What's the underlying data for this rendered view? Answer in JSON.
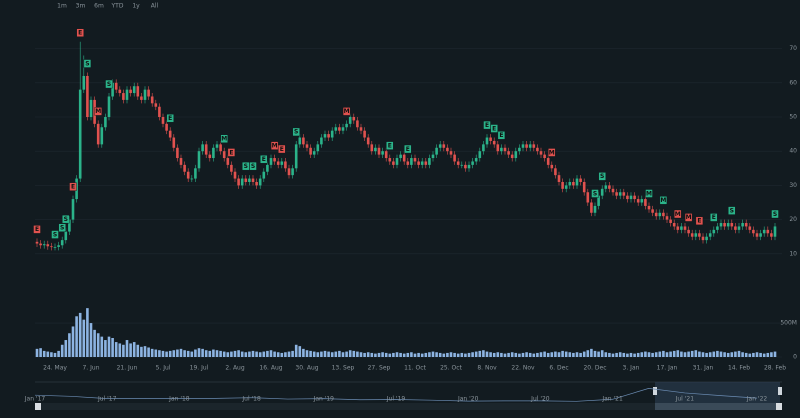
{
  "chart_data": {
    "type": "candlestick",
    "range_selector": [
      "1m",
      "3m",
      "6m",
      "YTD",
      "1y",
      "All"
    ],
    "categories": [
      null,
      null,
      null,
      null,
      null,
      "24. May",
      null,
      null,
      null,
      null,
      null,
      null,
      null,
      null,
      null,
      "7. Jun",
      null,
      null,
      null,
      null,
      null,
      null,
      null,
      null,
      null,
      "21. Jun",
      null,
      null,
      null,
      null,
      null,
      null,
      null,
      null,
      null,
      "5. Jul",
      null,
      null,
      null,
      null,
      null,
      null,
      null,
      null,
      null,
      "19. Jul",
      null,
      null,
      null,
      null,
      null,
      null,
      null,
      null,
      null,
      "2. Aug",
      null,
      null,
      null,
      null,
      null,
      null,
      null,
      null,
      null,
      "16. Aug",
      null,
      null,
      null,
      null,
      null,
      null,
      null,
      null,
      null,
      "30. Aug",
      null,
      null,
      null,
      null,
      null,
      null,
      null,
      null,
      null,
      "13. Sep",
      null,
      null,
      null,
      null,
      null,
      null,
      null,
      null,
      null,
      "27. Sep",
      null,
      null,
      null,
      null,
      null,
      null,
      null,
      null,
      null,
      "11. Oct",
      null,
      null,
      null,
      null,
      null,
      null,
      null,
      null,
      null,
      "25. Oct",
      null,
      null,
      null,
      null,
      null,
      null,
      null,
      null,
      null,
      "8. Nov",
      null,
      null,
      null,
      null,
      null,
      null,
      null,
      null,
      null,
      "22. Nov",
      null,
      null,
      null,
      null,
      null,
      null,
      null,
      null,
      null,
      "6. Dec",
      null,
      null,
      null,
      null,
      null,
      null,
      null,
      null,
      null,
      "20. Dec",
      null,
      null,
      null,
      null,
      null,
      null,
      null,
      null,
      null,
      "3. Jan",
      null,
      null,
      null,
      null,
      null,
      null,
      null,
      null,
      null,
      "17. Jan",
      null,
      null,
      null,
      null,
      null,
      null,
      null,
      null,
      null,
      "31. Jan",
      null,
      null,
      null,
      null,
      null,
      null,
      null,
      null,
      null,
      "14. Feb",
      null,
      null,
      null,
      null,
      null,
      null,
      null,
      null,
      null,
      "28. Feb"
    ],
    "open": [
      13.5,
      13,
      12.5,
      12.8,
      12.2,
      12,
      12,
      12.5,
      14,
      16.5,
      20,
      26,
      32,
      58,
      62,
      50,
      55,
      48,
      42,
      47,
      50,
      56,
      60,
      58,
      57,
      55,
      58,
      57,
      59,
      56,
      55,
      58,
      56,
      54,
      53,
      50,
      48,
      46,
      44,
      41,
      38,
      36,
      34,
      32,
      32,
      35,
      40,
      42,
      39,
      38,
      41,
      42,
      40,
      38,
      36,
      34,
      32,
      30,
      32,
      31,
      32,
      31,
      30,
      32,
      34,
      36,
      38,
      37,
      36,
      37,
      35,
      33,
      35,
      42,
      44,
      42,
      41,
      39,
      40,
      42,
      44,
      45,
      44,
      46,
      47,
      46,
      47,
      48,
      50,
      49,
      47,
      46,
      44,
      42,
      40,
      41,
      39,
      40,
      38,
      37,
      36,
      38,
      39,
      37,
      36,
      38,
      37,
      36,
      37,
      36,
      38,
      39,
      41,
      42,
      41,
      40,
      39,
      37,
      36,
      36,
      35,
      36,
      37,
      38,
      40,
      42,
      44,
      43,
      42,
      40,
      41,
      40,
      39,
      38,
      40,
      41,
      42,
      41,
      42,
      41,
      40,
      39,
      38,
      36,
      35,
      33,
      31,
      29,
      30,
      31,
      30,
      32,
      31,
      28,
      25,
      22,
      24,
      27,
      29,
      30,
      29,
      28,
      27,
      28,
      27,
      26,
      27,
      26,
      25,
      26,
      24,
      23,
      22,
      21,
      22,
      21,
      20,
      19,
      18,
      17,
      18,
      17,
      16,
      15,
      16,
      15,
      14,
      15,
      16,
      17,
      18,
      19,
      18,
      19,
      18,
      17,
      18,
      19,
      18,
      17,
      16,
      15,
      16,
      17,
      16,
      15
    ],
    "high": [
      14.5,
      14,
      13.8,
      13.8,
      13.2,
      13,
      13.5,
      15,
      17.5,
      21,
      27,
      33,
      72,
      68,
      63,
      56,
      56,
      49,
      48,
      51,
      57,
      61,
      61,
      59,
      58,
      59,
      59,
      60,
      60,
      57,
      59,
      59,
      57,
      55,
      54,
      51,
      49,
      47,
      45,
      42,
      39,
      37,
      35,
      33,
      36,
      41,
      43,
      43,
      40,
      42,
      43,
      43,
      41,
      39,
      37,
      35,
      33,
      33,
      33,
      33,
      33,
      32,
      33,
      35,
      37,
      39,
      39,
      38,
      38,
      38,
      36,
      36,
      43,
      45,
      45,
      43,
      42,
      41,
      43,
      45,
      46,
      46,
      47,
      48,
      48,
      48,
      49,
      51,
      51,
      50,
      48,
      47,
      45,
      43,
      42,
      42,
      41,
      41,
      39,
      38,
      39,
      40,
      40,
      38,
      39,
      39,
      38,
      38,
      38,
      39,
      40,
      42,
      43,
      43,
      42,
      41,
      40,
      38,
      37,
      37,
      37,
      38,
      39,
      41,
      43,
      45,
      45,
      44,
      43,
      42,
      42,
      41,
      40,
      41,
      42,
      43,
      43,
      43,
      43,
      42,
      41,
      40,
      39,
      37,
      36,
      34,
      32,
      31,
      32,
      32,
      33,
      33,
      32,
      29,
      26,
      25,
      28,
      30,
      31,
      31,
      30,
      29,
      29,
      29,
      28,
      28,
      28,
      27,
      27,
      27,
      25,
      24,
      23,
      23,
      23,
      22,
      21,
      20,
      19,
      19,
      19,
      18,
      17,
      17,
      17,
      16,
      16,
      17,
      18,
      19,
      20,
      20,
      20,
      20,
      19,
      19,
      20,
      20,
      19,
      18,
      17,
      17,
      18,
      18,
      17,
      19
    ],
    "low": [
      12,
      11.5,
      11.5,
      11.2,
      11,
      11,
      11,
      11.5,
      13,
      15.5,
      19,
      25,
      31,
      57,
      49,
      49,
      47,
      41,
      41,
      46,
      49,
      55,
      57,
      56,
      54,
      54,
      56,
      56,
      55,
      54,
      54,
      55,
      53,
      52,
      49,
      47,
      45,
      43,
      40,
      37,
      35,
      33,
      31,
      31,
      31,
      34,
      39,
      38,
      37,
      37,
      40,
      39,
      37,
      35,
      33,
      31,
      29,
      29,
      30,
      30,
      30,
      29,
      29,
      31,
      33,
      35,
      36,
      35,
      35,
      34,
      32,
      32,
      34,
      41,
      41,
      40,
      38,
      38,
      39,
      41,
      43,
      43,
      43,
      45,
      45,
      45,
      46,
      47,
      48,
      46,
      45,
      43,
      41,
      39,
      39,
      38,
      38,
      37,
      36,
      35,
      35,
      37,
      36,
      35,
      35,
      36,
      35,
      35,
      35,
      35,
      37,
      38,
      40,
      40,
      39,
      38,
      36,
      35,
      35,
      34,
      34,
      35,
      36,
      37,
      39,
      41,
      42,
      41,
      39,
      39,
      39,
      38,
      37,
      37,
      39,
      40,
      40,
      40,
      40,
      39,
      38,
      37,
      35,
      34,
      32,
      30,
      28,
      28,
      29,
      29,
      29,
      30,
      27,
      24,
      21,
      21,
      23,
      26,
      28,
      28,
      27,
      26,
      26,
      26,
      25,
      25,
      25,
      24,
      24,
      23,
      22,
      21,
      20,
      20,
      20,
      19,
      18,
      17,
      16,
      16,
      16,
      15,
      14,
      14,
      14,
      13,
      13,
      14,
      15,
      16,
      17,
      17,
      17,
      17,
      16,
      16,
      17,
      17,
      16,
      15,
      14,
      14,
      15,
      15,
      14,
      14
    ],
    "close": [
      13,
      12.5,
      12.8,
      12.2,
      12,
      12,
      12.5,
      14,
      16.5,
      20,
      26,
      32,
      58,
      62,
      50,
      55,
      48,
      42,
      47,
      50,
      56,
      60,
      58,
      57,
      55,
      58,
      57,
      59,
      56,
      55,
      58,
      56,
      54,
      53,
      50,
      48,
      46,
      44,
      41,
      38,
      36,
      34,
      32,
      32,
      35,
      40,
      42,
      39,
      38,
      41,
      42,
      40,
      38,
      36,
      34,
      32,
      30,
      32,
      31,
      32,
      31,
      30,
      32,
      34,
      36,
      38,
      37,
      36,
      37,
      35,
      33,
      35,
      42,
      44,
      42,
      41,
      39,
      40,
      42,
      44,
      45,
      44,
      46,
      47,
      46,
      47,
      48,
      50,
      49,
      47,
      46,
      44,
      42,
      40,
      41,
      39,
      40,
      38,
      37,
      36,
      38,
      39,
      37,
      36,
      38,
      37,
      36,
      37,
      36,
      38,
      39,
      41,
      42,
      41,
      40,
      39,
      37,
      36,
      36,
      35,
      36,
      37,
      38,
      40,
      42,
      44,
      43,
      42,
      40,
      41,
      40,
      39,
      38,
      40,
      41,
      42,
      41,
      42,
      41,
      40,
      39,
      38,
      36,
      35,
      33,
      31,
      29,
      30,
      31,
      30,
      32,
      31,
      28,
      25,
      22,
      24,
      27,
      29,
      30,
      29,
      28,
      27,
      28,
      27,
      26,
      27,
      26,
      25,
      26,
      24,
      23,
      22,
      21,
      22,
      21,
      20,
      19,
      18,
      17,
      18,
      17,
      16,
      15,
      16,
      15,
      14,
      15,
      16,
      17,
      18,
      19,
      18,
      19,
      18,
      17,
      18,
      19,
      18,
      17,
      16,
      15,
      16,
      17,
      16,
      15,
      18
    ],
    "volume": [
      120,
      130,
      90,
      80,
      70,
      60,
      90,
      180,
      250,
      350,
      450,
      600,
      650,
      550,
      720,
      500,
      400,
      350,
      300,
      250,
      300,
      280,
      220,
      200,
      180,
      250,
      200,
      220,
      180,
      150,
      160,
      140,
      120,
      110,
      100,
      90,
      80,
      90,
      100,
      110,
      120,
      100,
      90,
      80,
      110,
      130,
      120,
      100,
      90,
      110,
      100,
      90,
      80,
      70,
      80,
      90,
      100,
      80,
      70,
      80,
      90,
      80,
      70,
      80,
      90,
      100,
      80,
      70,
      60,
      70,
      80,
      90,
      180,
      160,
      120,
      100,
      90,
      80,
      70,
      80,
      90,
      80,
      70,
      80,
      90,
      70,
      80,
      100,
      90,
      80,
      70,
      60,
      70,
      60,
      50,
      60,
      70,
      60,
      50,
      60,
      70,
      60,
      50,
      60,
      70,
      50,
      60,
      50,
      60,
      70,
      80,
      70,
      60,
      50,
      60,
      70,
      60,
      50,
      60,
      50,
      60,
      70,
      80,
      90,
      100,
      80,
      70,
      60,
      70,
      60,
      50,
      60,
      70,
      60,
      50,
      60,
      70,
      60,
      50,
      60,
      70,
      80,
      60,
      70,
      80,
      70,
      90,
      80,
      70,
      60,
      70,
      60,
      80,
      100,
      120,
      90,
      80,
      100,
      70,
      60,
      50,
      60,
      70,
      60,
      50,
      60,
      50,
      60,
      70,
      80,
      70,
      60,
      70,
      80,
      90,
      70,
      80,
      90,
      100,
      80,
      70,
      80,
      90,
      100,
      80,
      70,
      60,
      70,
      80,
      90,
      80,
      70,
      60,
      70,
      80,
      90,
      70,
      60,
      50,
      60,
      70,
      60,
      50,
      60,
      70,
      80
    ],
    "up_color": "#2bb38a",
    "down_color": "#e0524f",
    "volume_color": "#8db4e2",
    "ylim": [
      0,
      75
    ],
    "yticks": [
      10,
      20,
      30,
      40,
      50,
      60,
      70
    ],
    "volume_ylim": [
      0,
      840
    ],
    "volume_yticks": [
      {
        "value": 500,
        "label": "500M"
      },
      0
    ],
    "grid": true,
    "flags": [
      {
        "x": 0,
        "title": "E",
        "color": "#e0524f"
      },
      {
        "x": 5,
        "title": "S",
        "color": "#2bb38a"
      },
      {
        "x": 7,
        "title": "S",
        "color": "#2bb38a"
      },
      {
        "x": 8,
        "title": "S",
        "color": "#2bb38a"
      },
      {
        "x": 10,
        "title": "E",
        "color": "#e0524f"
      },
      {
        "x": 12,
        "title": "E",
        "color": "#e0524f"
      },
      {
        "x": 14,
        "title": "S",
        "color": "#2bb38a"
      },
      {
        "x": 17,
        "title": "M",
        "color": "#e0524f"
      },
      {
        "x": 20,
        "title": "S",
        "color": "#2bb38a"
      },
      {
        "x": 37,
        "title": "E",
        "color": "#2bb38a"
      },
      {
        "x": 52,
        "title": "M",
        "color": "#2bb38a"
      },
      {
        "x": 54,
        "title": "E",
        "color": "#e0524f"
      },
      {
        "x": 58,
        "title": "S",
        "color": "#2bb38a"
      },
      {
        "x": 60,
        "title": "S",
        "color": "#2bb38a"
      },
      {
        "x": 63,
        "title": "E",
        "color": "#2bb38a"
      },
      {
        "x": 66,
        "title": "M",
        "color": "#e0524f"
      },
      {
        "x": 68,
        "title": "E",
        "color": "#e0524f"
      },
      {
        "x": 72,
        "title": "S",
        "color": "#2bb38a"
      },
      {
        "x": 86,
        "title": "M",
        "color": "#e0524f"
      },
      {
        "x": 98,
        "title": "E",
        "color": "#2bb38a"
      },
      {
        "x": 103,
        "title": "E",
        "color": "#2bb38a"
      },
      {
        "x": 125,
        "title": "E",
        "color": "#2bb38a"
      },
      {
        "x": 127,
        "title": "E",
        "color": "#2bb38a"
      },
      {
        "x": 129,
        "title": "E",
        "color": "#2bb38a"
      },
      {
        "x": 143,
        "title": "M",
        "color": "#e0524f"
      },
      {
        "x": 155,
        "title": "S",
        "color": "#2bb38a"
      },
      {
        "x": 157,
        "title": "S",
        "color": "#2bb38a"
      },
      {
        "x": 170,
        "title": "M",
        "color": "#2bb38a"
      },
      {
        "x": 174,
        "title": "M",
        "color": "#2bb38a"
      },
      {
        "x": 178,
        "title": "M",
        "color": "#e0524f"
      },
      {
        "x": 181,
        "title": "M",
        "color": "#e0524f"
      },
      {
        "x": 184,
        "title": "E",
        "color": "#e0524f"
      },
      {
        "x": 188,
        "title": "E",
        "color": "#2bb38a"
      },
      {
        "x": 193,
        "title": "S",
        "color": "#2bb38a"
      },
      {
        "x": 205,
        "title": "S",
        "color": "#2bb38a"
      }
    ],
    "navigator": {
      "categories": [
        "Jan '17",
        null,
        "Jul '17",
        null,
        "Jan '18",
        null,
        "Jul '18",
        null,
        "Jan '19",
        null,
        "Jul '19",
        null,
        "Jan '20",
        null,
        "Jul '20",
        null,
        "Jan '21",
        null,
        "Jul '21",
        null,
        "Jan '22"
      ],
      "values": [
        30,
        25,
        15,
        15,
        16,
        16,
        19,
        13,
        15,
        10,
        11,
        8,
        4,
        5,
        5,
        3,
        12,
        60,
        40,
        28,
        17
      ],
      "ylim": [
        0,
        75
      ],
      "color": "#6b8cb3"
    }
  }
}
